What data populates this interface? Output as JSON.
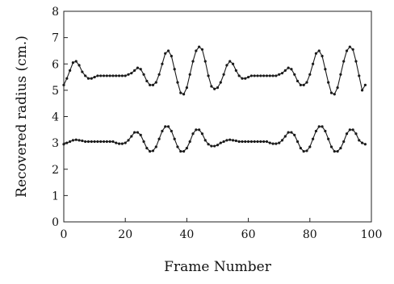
{
  "chart_data": {
    "type": "line",
    "title": "",
    "xlabel": "Frame Number",
    "ylabel": "Recovered radius (cm.)",
    "xlim": [
      0,
      100
    ],
    "ylim": [
      0,
      8
    ],
    "xticks": [
      0,
      20,
      40,
      60,
      80,
      100
    ],
    "yticks": [
      0,
      1,
      2,
      3,
      4,
      5,
      6,
      7,
      8
    ],
    "grid": false,
    "line_color": "#1a1a1a",
    "marker": "dot",
    "series": [
      {
        "x": [
          0,
          1,
          2,
          3,
          4,
          5,
          6,
          7,
          8,
          9,
          10,
          11,
          12,
          13,
          14,
          15,
          16,
          17,
          18,
          19,
          20,
          21,
          22,
          23,
          24,
          25,
          26,
          27,
          28,
          29,
          30,
          31,
          32,
          33,
          34,
          35,
          36,
          37,
          38,
          39,
          40,
          41,
          42,
          43,
          44,
          45,
          46,
          47,
          48,
          49,
          50,
          51,
          52,
          53,
          54,
          55,
          56,
          57,
          58,
          59,
          60,
          61,
          62,
          63,
          64,
          65,
          66,
          67,
          68,
          69,
          70,
          71,
          72,
          73,
          74,
          75,
          76,
          77,
          78,
          79,
          80,
          81,
          82,
          83,
          84,
          85,
          86,
          87,
          88,
          89,
          90,
          91,
          92,
          93,
          94,
          95,
          96,
          97,
          98
        ],
        "values": [
          5.2,
          5.45,
          5.75,
          6.05,
          6.1,
          5.95,
          5.7,
          5.55,
          5.45,
          5.45,
          5.5,
          5.55,
          5.55,
          5.55,
          5.55,
          5.55,
          5.55,
          5.55,
          5.55,
          5.55,
          5.55,
          5.6,
          5.65,
          5.75,
          5.85,
          5.8,
          5.6,
          5.35,
          5.2,
          5.2,
          5.3,
          5.6,
          6.0,
          6.4,
          6.5,
          6.3,
          5.8,
          5.3,
          4.9,
          4.85,
          5.1,
          5.6,
          6.1,
          6.5,
          6.65,
          6.55,
          6.1,
          5.55,
          5.15,
          5.05,
          5.1,
          5.3,
          5.6,
          5.95,
          6.1,
          6.0,
          5.75,
          5.55,
          5.45,
          5.45,
          5.5,
          5.55,
          5.55,
          5.55,
          5.55,
          5.55,
          5.55,
          5.55,
          5.55,
          5.55,
          5.6,
          5.65,
          5.75,
          5.85,
          5.8,
          5.6,
          5.35,
          5.2,
          5.2,
          5.3,
          5.6,
          6.0,
          6.4,
          6.5,
          6.3,
          5.8,
          5.3,
          4.9,
          4.85,
          5.1,
          5.6,
          6.1,
          6.5,
          6.65,
          6.55,
          6.1,
          5.55,
          5.0,
          5.2
        ]
      },
      {
        "x": [
          0,
          1,
          2,
          3,
          4,
          5,
          6,
          7,
          8,
          9,
          10,
          11,
          12,
          13,
          14,
          15,
          16,
          17,
          18,
          19,
          20,
          21,
          22,
          23,
          24,
          25,
          26,
          27,
          28,
          29,
          30,
          31,
          32,
          33,
          34,
          35,
          36,
          37,
          38,
          39,
          40,
          41,
          42,
          43,
          44,
          45,
          46,
          47,
          48,
          49,
          50,
          51,
          52,
          53,
          54,
          55,
          56,
          57,
          58,
          59,
          60,
          61,
          62,
          63,
          64,
          65,
          66,
          67,
          68,
          69,
          70,
          71,
          72,
          73,
          74,
          75,
          76,
          77,
          78,
          79,
          80,
          81,
          82,
          83,
          84,
          85,
          86,
          87,
          88,
          89,
          90,
          91,
          92,
          93,
          94,
          95,
          96,
          97,
          98
        ],
        "values": [
          2.95,
          3.0,
          3.05,
          3.1,
          3.12,
          3.1,
          3.08,
          3.05,
          3.05,
          3.05,
          3.05,
          3.05,
          3.05,
          3.05,
          3.05,
          3.05,
          3.05,
          3.0,
          2.97,
          2.97,
          3.0,
          3.1,
          3.25,
          3.4,
          3.4,
          3.3,
          3.05,
          2.8,
          2.68,
          2.7,
          2.85,
          3.15,
          3.45,
          3.62,
          3.62,
          3.45,
          3.15,
          2.85,
          2.68,
          2.68,
          2.8,
          3.05,
          3.35,
          3.5,
          3.5,
          3.35,
          3.1,
          2.95,
          2.88,
          2.88,
          2.92,
          3.0,
          3.05,
          3.1,
          3.12,
          3.1,
          3.08,
          3.05,
          3.05,
          3.05,
          3.05,
          3.05,
          3.05,
          3.05,
          3.05,
          3.05,
          3.05,
          3.0,
          2.97,
          2.97,
          3.0,
          3.1,
          3.25,
          3.4,
          3.4,
          3.3,
          3.05,
          2.8,
          2.68,
          2.7,
          2.85,
          3.15,
          3.45,
          3.62,
          3.62,
          3.45,
          3.15,
          2.85,
          2.68,
          2.68,
          2.8,
          3.05,
          3.35,
          3.5,
          3.5,
          3.35,
          3.1,
          3.0,
          2.95
        ]
      }
    ]
  }
}
